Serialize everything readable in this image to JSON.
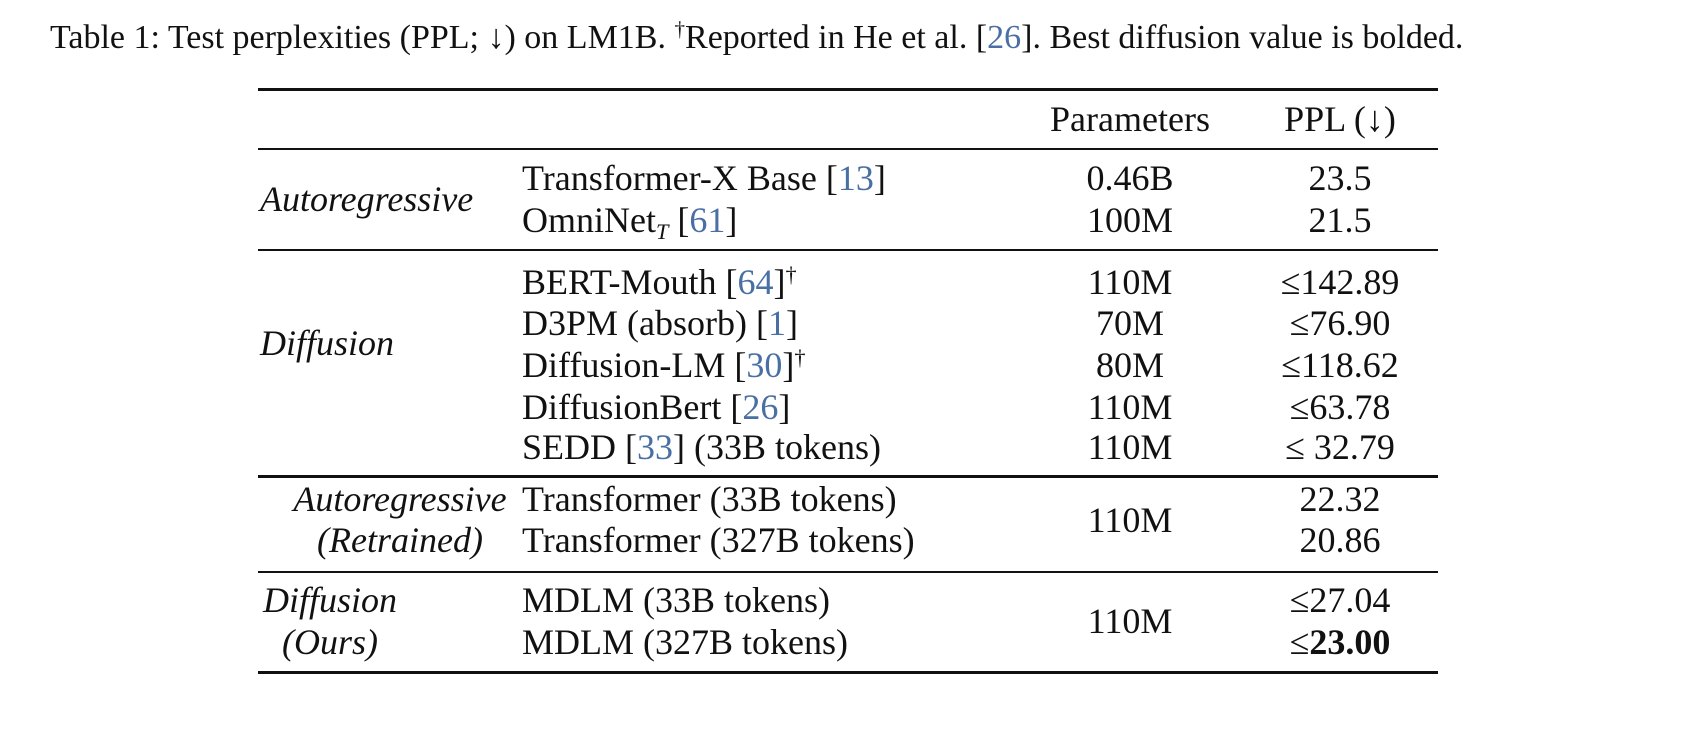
{
  "caption": {
    "prefix": "Table 1: Test perplexities (PPL; ↓) on LM1B. ",
    "dagger": "†",
    "reported_text": "Reported in He et al. [",
    "reported_cite": "26",
    "suffix": "]. Best diffusion value is bolded."
  },
  "header": {
    "parameters": "Parameters",
    "ppl": "PPL (↓)"
  },
  "groups": {
    "autoregressive": "Autoregressive",
    "diffusion": "Diffusion",
    "ar_retrained_1": "Autoregressive",
    "ar_retrained_2": "(Retrained)",
    "diff_ours_1": "Diffusion",
    "diff_ours_2": "(Ours)"
  },
  "rows": {
    "txl": {
      "name": "Transformer-X Base [",
      "cite": "13",
      "close": "]",
      "params": "0.46B",
      "ppl": "23.5"
    },
    "omni": {
      "name": "OmniNet",
      "sub": "T",
      "open": " [",
      "cite": "61",
      "close": "]",
      "params": "100M",
      "ppl": "21.5"
    },
    "bert": {
      "name": "BERT-Mouth [",
      "cite": "64",
      "close": "]",
      "dagger": "†",
      "params": "110M",
      "ppl": "≤142.89"
    },
    "d3pm": {
      "name": "D3PM (absorb) [",
      "cite": "1",
      "close": "]",
      "params": "70M",
      "ppl": "≤76.90"
    },
    "dlm": {
      "name": "Diffusion-LM [",
      "cite": "30",
      "close": "]",
      "dagger": "†",
      "params": "80M",
      "ppl": "≤118.62"
    },
    "dbert": {
      "name": "DiffusionBert [",
      "cite": "26",
      "close": "]",
      "params": "110M",
      "ppl": "≤63.78"
    },
    "sedd": {
      "name": "SEDD [",
      "cite": "33",
      "close": "] (33B tokens)",
      "params": "110M",
      "ppl": "≤ 32.79"
    },
    "tr33": {
      "name": "Transformer (33B tokens)",
      "ppl": "22.32"
    },
    "tr327": {
      "name": "Transformer (327B tokens)",
      "ppl": "20.86"
    },
    "ar_params": "110M",
    "mdlm33": {
      "name": "MDLM (33B tokens)",
      "ppl": "≤27.04"
    },
    "mdlm327": {
      "name": "MDLM (327B tokens)",
      "ppl_prefix": "≤",
      "ppl_bold": "23.00"
    },
    "mdlm_params": "110M"
  }
}
